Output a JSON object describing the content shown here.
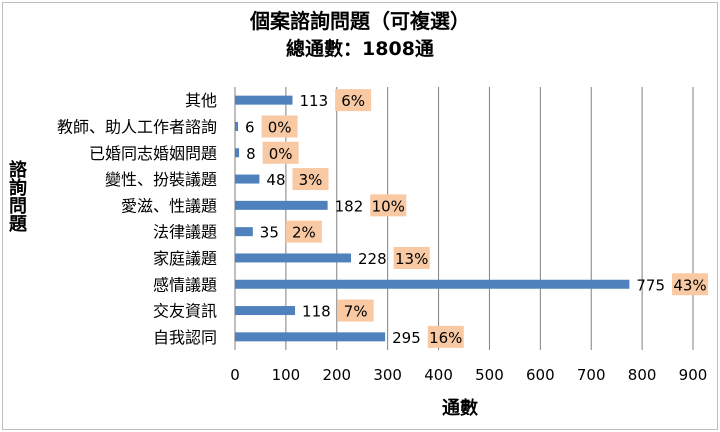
{
  "chart_data": {
    "type": "bar",
    "orientation": "horizontal",
    "title": "個案諮詢問題（可複選）",
    "subtitle": "總通數：1808通",
    "xlabel": "通數",
    "ylabel": "諮詢問題",
    "categories": [
      "其他",
      "教師、助人工作者諮詢",
      "已婚同志婚姻問題",
      "變性、扮裝議題",
      "愛滋、性議題",
      "法律議題",
      "家庭議題",
      "感情議題",
      "交友資訊",
      "自我認同"
    ],
    "values": [
      113,
      6,
      8,
      48,
      182,
      35,
      228,
      775,
      118,
      295
    ],
    "percent_labels": [
      "6%",
      "0%",
      "0%",
      "3%",
      "10%",
      "2%",
      "13%",
      "43%",
      "7%",
      "16%"
    ],
    "xlim": [
      0,
      900
    ],
    "xticks": [
      "0",
      "100",
      "200",
      "300",
      "400",
      "500",
      "600",
      "700",
      "800",
      "900"
    ],
    "grid": "vertical",
    "legend": "none",
    "colors": {
      "bar": "#4f81bd",
      "percent_box": "#f8c9a3",
      "grid": "#7f7f7f",
      "axis": "#7f7f7f"
    }
  }
}
